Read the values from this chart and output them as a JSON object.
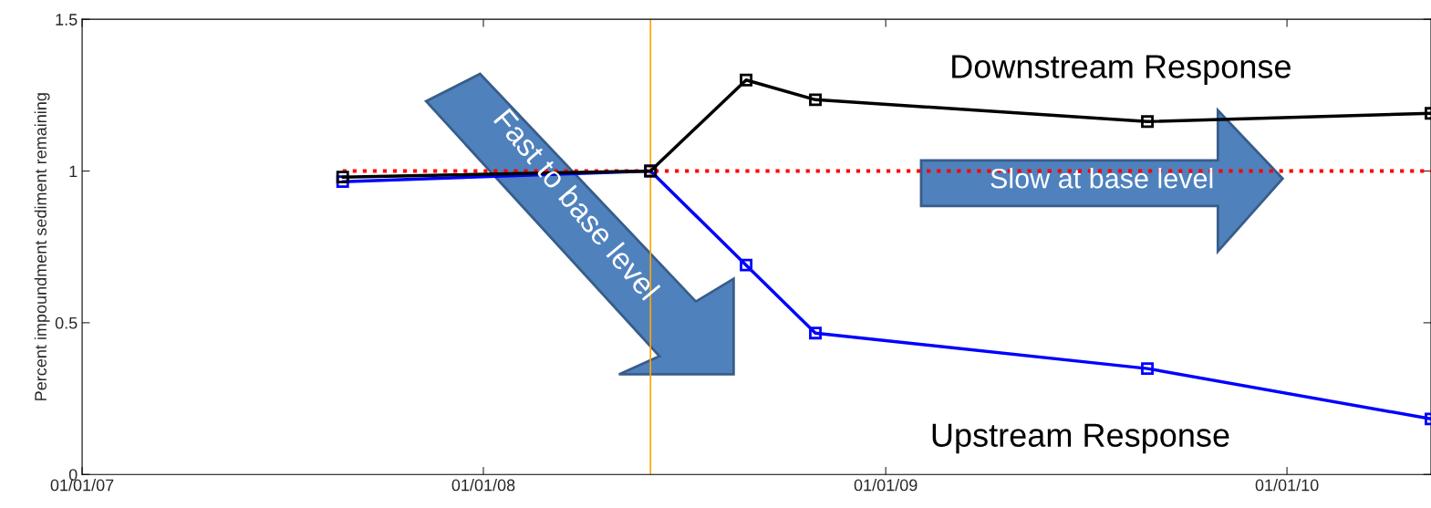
{
  "chart_data": {
    "type": "line",
    "ylabel": "Percent impoundment sediment remaining",
    "xlim": [
      "2007-01-01",
      "2010-05-12"
    ],
    "ylim": [
      0,
      1.5
    ],
    "xticks": [
      {
        "value": "2007-01-01",
        "label": "01/01/07"
      },
      {
        "value": "2008-01-01",
        "label": "01/01/08"
      },
      {
        "value": "2009-01-01",
        "label": "01/01/09"
      },
      {
        "value": "2010-01-01",
        "label": "01/01/10"
      }
    ],
    "yticks": [
      0,
      0.5,
      1,
      1.5
    ],
    "grid": false,
    "legend": false,
    "marker": "square",
    "series": [
      {
        "name": "Downstream Response",
        "color": "#000000",
        "x": [
          "2007-08-26",
          "2008-06-01",
          "2008-08-27",
          "2008-10-29",
          "2009-08-27",
          "2010-05-12"
        ],
        "values": [
          0.98,
          1.0,
          1.3,
          1.235,
          1.163,
          1.19
        ]
      },
      {
        "name": "Upstream Response",
        "color": "#0000ff",
        "x": [
          "2007-08-26",
          "2008-06-01",
          "2008-08-27",
          "2008-10-29",
          "2009-08-27",
          "2010-05-12"
        ],
        "values": [
          0.965,
          1.0,
          0.69,
          0.466,
          0.349,
          0.183
        ]
      },
      {
        "color": "#ff0000",
        "line_style": "dotted",
        "marker": "none",
        "x": [
          "2007-08-26",
          "2010-05-12"
        ],
        "values": [
          1,
          1
        ]
      }
    ],
    "ref_lines": [
      {
        "axis": "x",
        "value": "2008-06-01",
        "color": "#ffa500"
      }
    ],
    "annotations": [
      "Fast to base level",
      "Slow at base level"
    ]
  }
}
